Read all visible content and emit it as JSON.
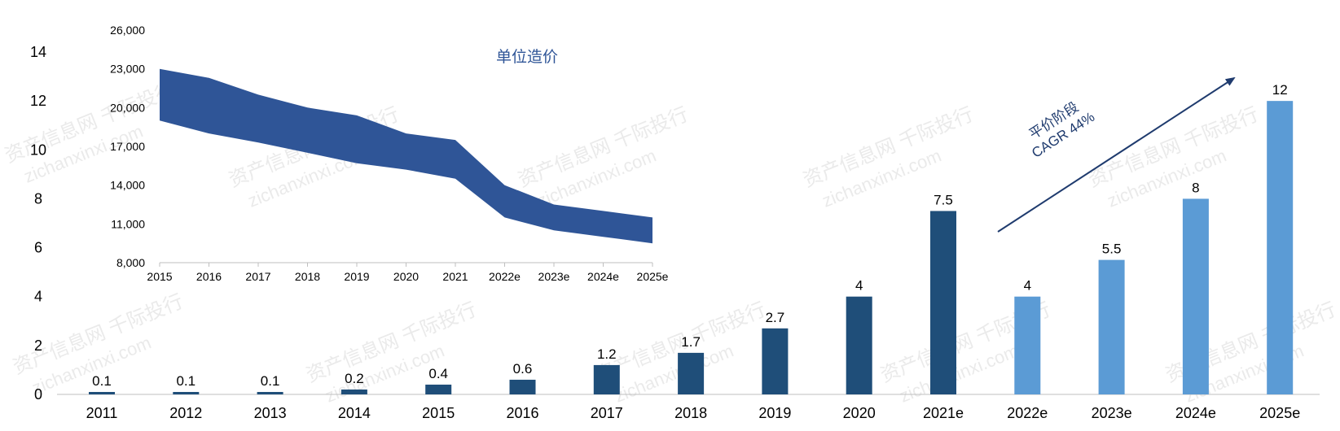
{
  "chart_data": [
    {
      "type": "bar",
      "title": "",
      "xlabel": "",
      "ylabel": "",
      "ylim": [
        0,
        14
      ],
      "y_ticks": [
        "0",
        "2",
        "4",
        "6",
        "8",
        "10",
        "12",
        "14"
      ],
      "categories": [
        "2011",
        "2012",
        "2013",
        "2014",
        "2015",
        "2016",
        "2017",
        "2018",
        "2019",
        "2020",
        "2021e",
        "2022e",
        "2023e",
        "2024e",
        "2025e"
      ],
      "values": [
        0.1,
        0.1,
        0.1,
        0.2,
        0.4,
        0.6,
        1.2,
        1.7,
        2.7,
        4,
        7.5,
        4,
        5.5,
        8,
        12
      ],
      "value_labels": [
        "0.1",
        "0.1",
        "0.1",
        "0.2",
        "0.4",
        "0.6",
        "1.2",
        "1.7",
        "2.7",
        "4",
        "7.5",
        "4",
        "5.5",
        "8",
        "12"
      ],
      "bar_colors": [
        "#1f4e79",
        "#1f4e79",
        "#1f4e79",
        "#1f4e79",
        "#1f4e79",
        "#1f4e79",
        "#1f4e79",
        "#1f4e79",
        "#1f4e79",
        "#1f4e79",
        "#1f4e79",
        "#5b9bd5",
        "#5b9bd5",
        "#5b9bd5",
        "#5b9bd5"
      ],
      "grid": false,
      "annotation": {
        "lines": [
          "平价阶段",
          "CAGR 44%"
        ],
        "arrow": true,
        "color": "#1f3b6e"
      }
    },
    {
      "type": "area",
      "title": "单位造价",
      "xlabel": "",
      "ylabel": "",
      "ylim": [
        8000,
        26000
      ],
      "y_ticks": [
        "8,000",
        "11,000",
        "14,000",
        "17,000",
        "20,000",
        "23,000",
        "26,000"
      ],
      "categories": [
        "2015",
        "2016",
        "2017",
        "2018",
        "2019",
        "2020",
        "2021",
        "2022e",
        "2023e",
        "2024e",
        "2025e"
      ],
      "series": [
        {
          "values_upper": [
            23000,
            22300,
            21000,
            20000,
            19400,
            18000,
            17500,
            14000,
            12500,
            12000,
            11500
          ],
          "values_lower": [
            19000,
            18000,
            17300,
            16500,
            15700,
            15200,
            14500,
            11500,
            10500,
            10000,
            9500
          ]
        }
      ],
      "fill_color": "#2f5597",
      "grid": false
    }
  ],
  "watermark": {
    "line1": "资产信息网 千际投行",
    "line2": "zichanxinxi.com"
  }
}
